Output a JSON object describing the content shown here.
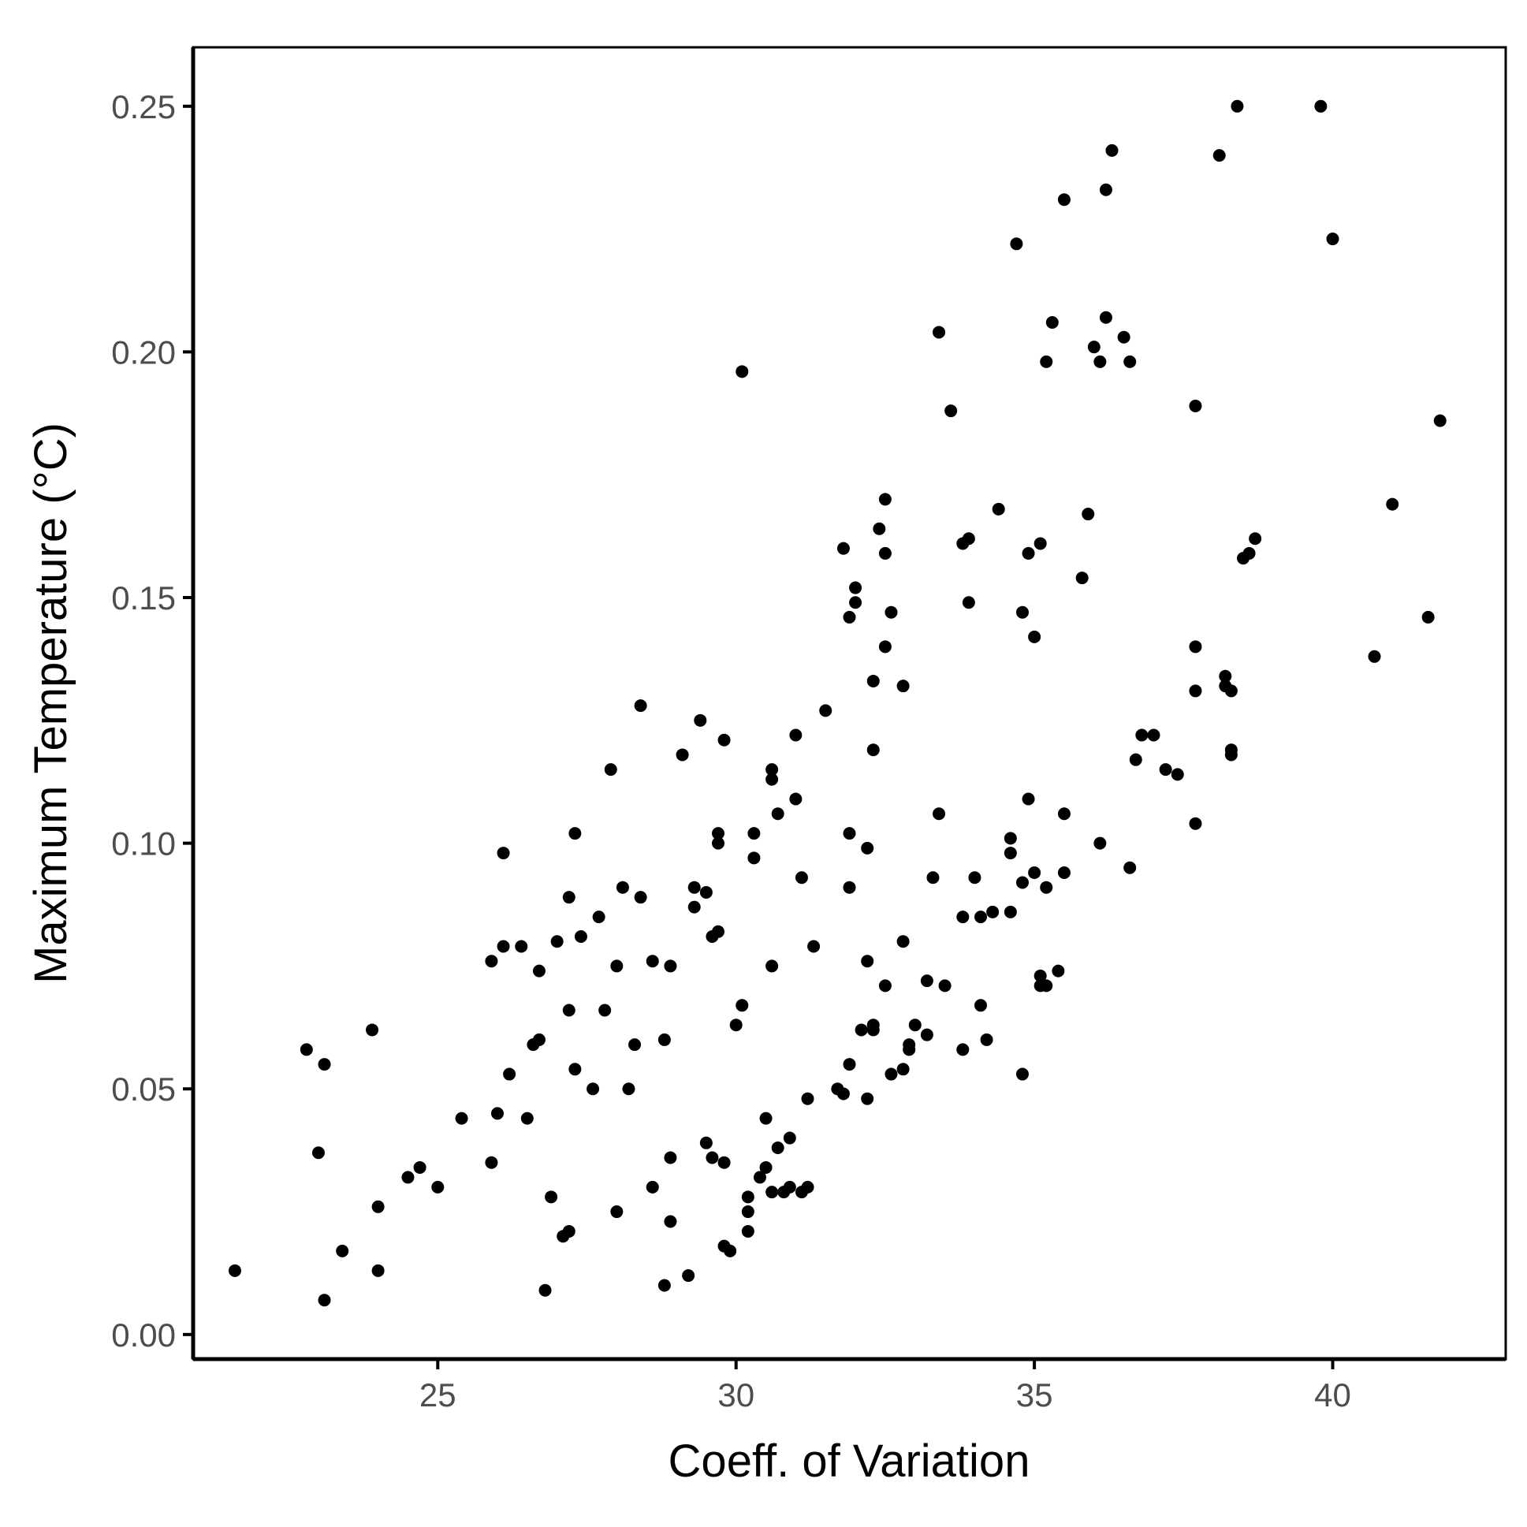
{
  "chart_data": {
    "type": "scatter",
    "title": "",
    "xlabel": "Coeff. of Variation",
    "ylabel": "Maximum Temperature (°C)",
    "xlim": [
      20.9,
      42.9
    ],
    "ylim": [
      -0.005,
      0.262
    ],
    "x_ticks": [
      25,
      30,
      35,
      40
    ],
    "x_tick_labels": [
      "25",
      "30",
      "35",
      "40"
    ],
    "y_ticks": [
      0,
      0.05,
      0.1,
      0.15,
      0.2,
      0.25
    ],
    "y_tick_labels": [
      "0.00",
      "0.05",
      "0.10",
      "0.15",
      "0.20",
      "0.25"
    ],
    "grid": false,
    "legend": "none",
    "point_color": "#000000",
    "points": [
      [
        21.6,
        0.013
      ],
      [
        22.8,
        0.058
      ],
      [
        23.0,
        0.037
      ],
      [
        23.1,
        0.007
      ],
      [
        23.1,
        0.055
      ],
      [
        23.4,
        0.017
      ],
      [
        23.9,
        0.062
      ],
      [
        24.0,
        0.026
      ],
      [
        24.0,
        0.013
      ],
      [
        24.5,
        0.032
      ],
      [
        24.7,
        0.034
      ],
      [
        25.0,
        0.03
      ],
      [
        25.4,
        0.044
      ],
      [
        25.9,
        0.076
      ],
      [
        25.9,
        0.035
      ],
      [
        26.0,
        0.045
      ],
      [
        26.1,
        0.098
      ],
      [
        26.1,
        0.079
      ],
      [
        26.2,
        0.053
      ],
      [
        26.4,
        0.079
      ],
      [
        26.5,
        0.044
      ],
      [
        26.6,
        0.059
      ],
      [
        26.7,
        0.06
      ],
      [
        26.7,
        0.074
      ],
      [
        26.8,
        0.009
      ],
      [
        26.9,
        0.028
      ],
      [
        27.0,
        0.08
      ],
      [
        27.1,
        0.02
      ],
      [
        27.2,
        0.021
      ],
      [
        27.2,
        0.066
      ],
      [
        27.2,
        0.089
      ],
      [
        27.3,
        0.054
      ],
      [
        27.3,
        0.102
      ],
      [
        27.4,
        0.081
      ],
      [
        27.6,
        0.05
      ],
      [
        27.7,
        0.085
      ],
      [
        27.8,
        0.066
      ],
      [
        27.9,
        0.115
      ],
      [
        28.0,
        0.075
      ],
      [
        28.0,
        0.025
      ],
      [
        28.1,
        0.091
      ],
      [
        28.2,
        0.05
      ],
      [
        28.3,
        0.059
      ],
      [
        28.4,
        0.128
      ],
      [
        28.4,
        0.089
      ],
      [
        28.6,
        0.076
      ],
      [
        28.6,
        0.03
      ],
      [
        28.8,
        0.06
      ],
      [
        28.8,
        0.01
      ],
      [
        28.9,
        0.036
      ],
      [
        28.9,
        0.075
      ],
      [
        28.9,
        0.023
      ],
      [
        29.1,
        0.118
      ],
      [
        29.2,
        0.012
      ],
      [
        29.3,
        0.087
      ],
      [
        29.3,
        0.091
      ],
      [
        29.4,
        0.125
      ],
      [
        29.5,
        0.039
      ],
      [
        29.5,
        0.09
      ],
      [
        29.6,
        0.081
      ],
      [
        29.6,
        0.036
      ],
      [
        29.7,
        0.082
      ],
      [
        29.7,
        0.102
      ],
      [
        29.7,
        0.1
      ],
      [
        29.8,
        0.018
      ],
      [
        29.8,
        0.121
      ],
      [
        29.8,
        0.035
      ],
      [
        29.9,
        0.017
      ],
      [
        30.0,
        0.063
      ],
      [
        30.1,
        0.196
      ],
      [
        30.1,
        0.067
      ],
      [
        30.2,
        0.028
      ],
      [
        30.2,
        0.025
      ],
      [
        30.2,
        0.021
      ],
      [
        30.3,
        0.097
      ],
      [
        30.3,
        0.102
      ],
      [
        30.4,
        0.032
      ],
      [
        30.5,
        0.034
      ],
      [
        30.5,
        0.044
      ],
      [
        30.6,
        0.115
      ],
      [
        30.6,
        0.113
      ],
      [
        30.6,
        0.029
      ],
      [
        30.6,
        0.075
      ],
      [
        30.7,
        0.038
      ],
      [
        30.7,
        0.106
      ],
      [
        30.8,
        0.029
      ],
      [
        30.9,
        0.03
      ],
      [
        30.9,
        0.04
      ],
      [
        31.0,
        0.109
      ],
      [
        31.0,
        0.122
      ],
      [
        31.1,
        0.093
      ],
      [
        31.1,
        0.029
      ],
      [
        31.2,
        0.03
      ],
      [
        31.2,
        0.048
      ],
      [
        31.3,
        0.079
      ],
      [
        31.5,
        0.127
      ],
      [
        31.7,
        0.05
      ],
      [
        31.8,
        0.16
      ],
      [
        31.8,
        0.049
      ],
      [
        31.9,
        0.146
      ],
      [
        31.9,
        0.055
      ],
      [
        31.9,
        0.102
      ],
      [
        31.9,
        0.091
      ],
      [
        32.0,
        0.149
      ],
      [
        32.0,
        0.152
      ],
      [
        32.1,
        0.062
      ],
      [
        32.2,
        0.099
      ],
      [
        32.2,
        0.048
      ],
      [
        32.2,
        0.076
      ],
      [
        32.3,
        0.062
      ],
      [
        32.3,
        0.133
      ],
      [
        32.3,
        0.063
      ],
      [
        32.3,
        0.119
      ],
      [
        32.4,
        0.164
      ],
      [
        32.5,
        0.159
      ],
      [
        32.5,
        0.17
      ],
      [
        32.5,
        0.14
      ],
      [
        32.5,
        0.071
      ],
      [
        32.6,
        0.053
      ],
      [
        32.6,
        0.147
      ],
      [
        32.8,
        0.054
      ],
      [
        32.8,
        0.08
      ],
      [
        32.8,
        0.132
      ],
      [
        32.9,
        0.058
      ],
      [
        32.9,
        0.059
      ],
      [
        33.0,
        0.063
      ],
      [
        33.2,
        0.061
      ],
      [
        33.2,
        0.072
      ],
      [
        33.3,
        0.093
      ],
      [
        33.4,
        0.204
      ],
      [
        33.4,
        0.106
      ],
      [
        33.5,
        0.071
      ],
      [
        33.6,
        0.188
      ],
      [
        33.8,
        0.161
      ],
      [
        33.8,
        0.085
      ],
      [
        33.8,
        0.058
      ],
      [
        33.9,
        0.149
      ],
      [
        33.9,
        0.162
      ],
      [
        34.0,
        0.093
      ],
      [
        34.1,
        0.085
      ],
      [
        34.1,
        0.067
      ],
      [
        34.2,
        0.06
      ],
      [
        34.3,
        0.086
      ],
      [
        34.4,
        0.168
      ],
      [
        34.6,
        0.086
      ],
      [
        34.6,
        0.101
      ],
      [
        34.6,
        0.098
      ],
      [
        34.7,
        0.222
      ],
      [
        34.8,
        0.147
      ],
      [
        34.8,
        0.092
      ],
      [
        34.8,
        0.053
      ],
      [
        34.9,
        0.109
      ],
      [
        34.9,
        0.159
      ],
      [
        35.0,
        0.142
      ],
      [
        35.0,
        0.094
      ],
      [
        35.1,
        0.161
      ],
      [
        35.1,
        0.073
      ],
      [
        35.1,
        0.071
      ],
      [
        35.2,
        0.198
      ],
      [
        35.2,
        0.091
      ],
      [
        35.2,
        0.071
      ],
      [
        35.3,
        0.206
      ],
      [
        35.4,
        0.074
      ],
      [
        35.5,
        0.231
      ],
      [
        35.5,
        0.106
      ],
      [
        35.5,
        0.094
      ],
      [
        35.8,
        0.154
      ],
      [
        35.9,
        0.167
      ],
      [
        36.0,
        0.201
      ],
      [
        36.1,
        0.198
      ],
      [
        36.1,
        0.1
      ],
      [
        36.2,
        0.233
      ],
      [
        36.2,
        0.207
      ],
      [
        36.3,
        0.241
      ],
      [
        36.5,
        0.203
      ],
      [
        36.6,
        0.198
      ],
      [
        36.6,
        0.095
      ],
      [
        36.7,
        0.117
      ],
      [
        36.8,
        0.122
      ],
      [
        37.0,
        0.122
      ],
      [
        37.2,
        0.115
      ],
      [
        37.4,
        0.114
      ],
      [
        37.7,
        0.189
      ],
      [
        37.7,
        0.131
      ],
      [
        37.7,
        0.14
      ],
      [
        37.7,
        0.104
      ],
      [
        38.1,
        0.24
      ],
      [
        38.2,
        0.134
      ],
      [
        38.2,
        0.132
      ],
      [
        38.3,
        0.131
      ],
      [
        38.3,
        0.119
      ],
      [
        38.3,
        0.118
      ],
      [
        38.4,
        0.25
      ],
      [
        38.5,
        0.158
      ],
      [
        38.6,
        0.159
      ],
      [
        38.7,
        0.162
      ],
      [
        39.8,
        0.25
      ],
      [
        40.0,
        0.223
      ],
      [
        40.7,
        0.138
      ],
      [
        41.0,
        0.169
      ],
      [
        41.6,
        0.146
      ],
      [
        41.8,
        0.186
      ]
    ]
  }
}
